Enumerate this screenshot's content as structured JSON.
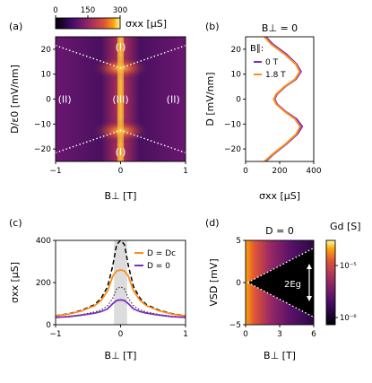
{
  "chart_data": [
    {
      "panel": "(a)",
      "type": "heatmap",
      "xlabel": "B⊥ [T]",
      "ylabel": "D/ε0 [mV/nm]",
      "xlim": [
        -1,
        1
      ],
      "ylim": [
        -25,
        25
      ],
      "xticks": [
        "−1",
        "0",
        "1"
      ],
      "yticks": [
        "20",
        "10",
        "0",
        "−10",
        "−20"
      ],
      "colorbar": {
        "label": "σxx [μS]",
        "ticks": [
          "0",
          "150",
          "300"
        ],
        "range": [
          0,
          300
        ],
        "colormap": "inferno"
      },
      "region_labels": [
        {
          "label": "(I)",
          "x": 0,
          "y": 21
        },
        {
          "label": "(I)",
          "x": 0,
          "y": -21
        },
        {
          "label": "(II)",
          "x": -0.86,
          "y": 0
        },
        {
          "label": "(II)",
          "x": 0.81,
          "y": 0
        },
        {
          "label": "(III)",
          "x": 0,
          "y": 0
        }
      ],
      "boundaries": [
        {
          "x": [
            -1,
            0,
            1
          ],
          "y": [
            21.5,
            12.5,
            21.5
          ]
        },
        {
          "x": [
            -1,
            0,
            1
          ],
          "y": [
            -21.5,
            -12.5,
            -21.5
          ]
        }
      ]
    },
    {
      "panel": "(b)",
      "type": "line",
      "title": "B⊥ = 0",
      "xlabel": "σxx [μS]",
      "ylabel": "D [mV/nm]",
      "xlim": [
        0,
        400
      ],
      "ylim": [
        -25,
        25
      ],
      "xticks": [
        "0",
        "200",
        "400"
      ],
      "yticks": [
        "20",
        "10",
        "0",
        "−10",
        "−20"
      ],
      "legend_title": "B∥:",
      "series": [
        {
          "name": "0 T",
          "color": "#7b2fbe",
          "x": [
            118,
            165,
            240,
            305,
            332,
            300,
            235,
            185,
            170,
            185,
            232,
            296,
            325,
            300,
            240,
            160,
            118
          ],
          "y": [
            -25,
            -22,
            -18,
            -14,
            -11,
            -8,
            -5,
            -2,
            0,
            2,
            5,
            8,
            11,
            14,
            18,
            22,
            25
          ]
        },
        {
          "name": "1.8 T",
          "color": "#ff8c1a",
          "x": [
            110,
            160,
            235,
            298,
            320,
            290,
            230,
            180,
            165,
            180,
            228,
            290,
            318,
            295,
            230,
            150,
            110
          ],
          "y": [
            -25,
            -22,
            -18,
            -14,
            -11,
            -8,
            -5,
            -2,
            0,
            2,
            5,
            8,
            11,
            14,
            18,
            22,
            25
          ]
        }
      ]
    },
    {
      "panel": "(c)",
      "type": "line",
      "xlabel": "B⊥ [T]",
      "ylabel": "σxx [μS]",
      "xlim": [
        -1,
        1
      ],
      "ylim": [
        0,
        400
      ],
      "xticks": [
        "−1",
        "0",
        "1"
      ],
      "yticks": [
        "0",
        "200",
        "400"
      ],
      "shaded_band_x": [
        -0.1,
        0.1
      ],
      "series": [
        {
          "name": "D = Dc",
          "color": "#ff8c1a",
          "style": "solid",
          "x": [
            -1,
            -0.8,
            -0.6,
            -0.4,
            -0.3,
            -0.2,
            -0.12,
            -0.06,
            0,
            0.06,
            0.12,
            0.2,
            0.3,
            0.4,
            0.6,
            0.8,
            1
          ],
          "y": [
            42,
            50,
            65,
            90,
            115,
            160,
            230,
            255,
            260,
            255,
            230,
            160,
            115,
            90,
            65,
            50,
            42
          ]
        },
        {
          "name": "D = 0",
          "color": "#7b2fbe",
          "style": "solid",
          "x": [
            -1,
            -0.8,
            -0.6,
            -0.4,
            -0.3,
            -0.2,
            -0.12,
            -0.06,
            0,
            0.06,
            0.12,
            0.2,
            0.3,
            0.4,
            0.6,
            0.8,
            1
          ],
          "y": [
            35,
            38,
            45,
            55,
            62,
            75,
            100,
            115,
            118,
            115,
            100,
            75,
            62,
            55,
            45,
            38,
            35
          ]
        },
        {
          "name": "",
          "color": "#000000",
          "style": "dashed",
          "x": [
            -1,
            -0.8,
            -0.6,
            -0.4,
            -0.3,
            -0.2,
            -0.12,
            -0.06,
            0,
            0.06,
            0.12,
            0.2,
            0.3,
            0.4,
            0.6,
            0.8,
            1
          ],
          "y": [
            43,
            52,
            68,
            95,
            125,
            180,
            280,
            380,
            400,
            380,
            280,
            180,
            125,
            95,
            68,
            52,
            43
          ]
        },
        {
          "name": "",
          "color": "#333333",
          "style": "dotted",
          "x": [
            -1,
            -0.8,
            -0.6,
            -0.4,
            -0.3,
            -0.2,
            -0.12,
            -0.06,
            0,
            0.06,
            0.12,
            0.2,
            0.3,
            0.4,
            0.6,
            0.8,
            1
          ],
          "y": [
            36,
            40,
            48,
            60,
            70,
            90,
            125,
            170,
            180,
            170,
            125,
            90,
            70,
            60,
            48,
            40,
            36
          ]
        }
      ]
    },
    {
      "panel": "(d)",
      "type": "heatmap",
      "title": "D = 0",
      "xlabel": "B⊥ [T]",
      "ylabel": "VSD [mV]",
      "xlim": [
        0,
        6
      ],
      "ylim": [
        -5,
        5
      ],
      "xticks": [
        "0",
        "3",
        "6"
      ],
      "yticks": [
        "5",
        "0",
        "−5"
      ],
      "colorbar": {
        "label": "Gd [S]",
        "ticks": [
          "10⁻⁵",
          "10⁻⁶"
        ],
        "range": [
          "1e-6",
          "1e-5"
        ],
        "colormap": "inferno",
        "scale": "log"
      },
      "gap_boundaries": [
        {
          "x": [
            0.2,
            6
          ],
          "y": [
            0,
            4.1
          ]
        },
        {
          "x": [
            0.2,
            6
          ],
          "y": [
            0,
            -4.1
          ]
        }
      ],
      "annotation": "2Eₑ"
    }
  ],
  "labels": {
    "a": "(a)",
    "b": "(b)",
    "c": "(c)",
    "d": "(d)",
    "cbar_a_ticks": [
      "0",
      "150",
      "300"
    ],
    "cbar_a_label": "σxx [μS]",
    "cbar_d_label": "Gd [S]",
    "cbar_d_ticks": [
      "10⁻⁵",
      "10⁻⁶"
    ],
    "b_title": "B⊥ = 0",
    "d_title": "D = 0",
    "legend_b_title": "B∥:",
    "legend_b_0": "0 T",
    "legend_b_18": "1.8 T",
    "legend_c_dc": "D = Dc",
    "legend_c_0": "D = 0",
    "gap_label": "2Eg"
  },
  "colors": {
    "purple": "#7b2fbe",
    "orange": "#ff8c1a",
    "shade": "#dcdcdc"
  }
}
